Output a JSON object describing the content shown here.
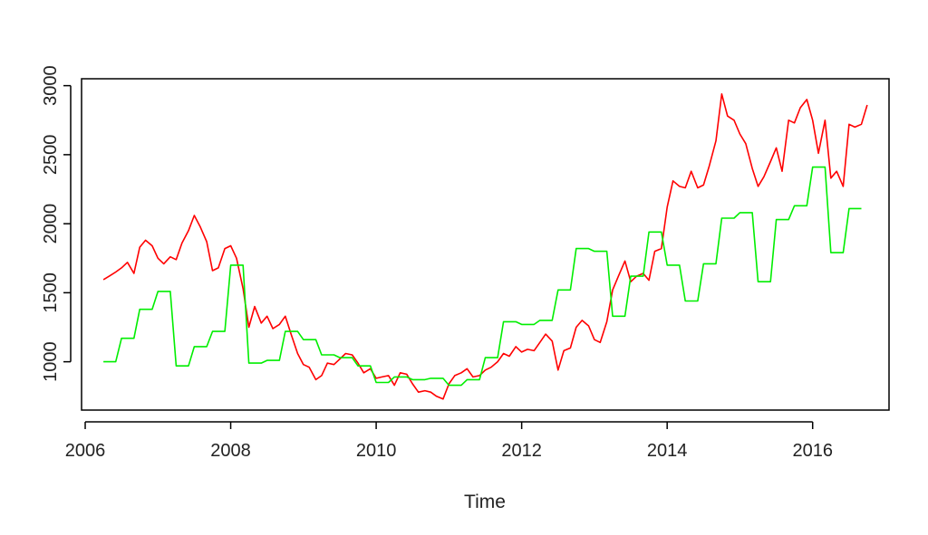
{
  "chart_data": {
    "type": "line",
    "xlabel": "Time",
    "ylabel": "",
    "xlim": [
      2005.95,
      2017.05
    ],
    "ylim": [
      650,
      3050
    ],
    "x_ticks": [
      2006,
      2008,
      2010,
      2012,
      2014,
      2016
    ],
    "y_ticks": [
      1000,
      1500,
      2000,
      2500,
      3000
    ],
    "grid": false,
    "legend": "none",
    "series": [
      {
        "color": "#ff0000",
        "points": [
          [
            2006.25,
            1595
          ],
          [
            2006.33,
            1620
          ],
          [
            2006.42,
            1650
          ],
          [
            2006.5,
            1680
          ],
          [
            2006.58,
            1720
          ],
          [
            2006.67,
            1640
          ],
          [
            2006.75,
            1830
          ],
          [
            2006.83,
            1880
          ],
          [
            2006.92,
            1840
          ],
          [
            2007.0,
            1750
          ],
          [
            2007.08,
            1710
          ],
          [
            2007.17,
            1760
          ],
          [
            2007.25,
            1740
          ],
          [
            2007.33,
            1860
          ],
          [
            2007.42,
            1950
          ],
          [
            2007.5,
            2060
          ],
          [
            2007.58,
            1980
          ],
          [
            2007.67,
            1870
          ],
          [
            2007.75,
            1660
          ],
          [
            2007.83,
            1680
          ],
          [
            2007.92,
            1820
          ],
          [
            2008.0,
            1840
          ],
          [
            2008.08,
            1750
          ],
          [
            2008.17,
            1530
          ],
          [
            2008.25,
            1250
          ],
          [
            2008.33,
            1400
          ],
          [
            2008.42,
            1280
          ],
          [
            2008.5,
            1330
          ],
          [
            2008.58,
            1240
          ],
          [
            2008.67,
            1270
          ],
          [
            2008.75,
            1330
          ],
          [
            2008.83,
            1200
          ],
          [
            2008.92,
            1060
          ],
          [
            2009.0,
            980
          ],
          [
            2009.08,
            960
          ],
          [
            2009.17,
            870
          ],
          [
            2009.25,
            900
          ],
          [
            2009.33,
            990
          ],
          [
            2009.42,
            980
          ],
          [
            2009.5,
            1020
          ],
          [
            2009.58,
            1060
          ],
          [
            2009.67,
            1050
          ],
          [
            2009.75,
            990
          ],
          [
            2009.83,
            920
          ],
          [
            2009.92,
            950
          ],
          [
            2010.0,
            880
          ],
          [
            2010.08,
            890
          ],
          [
            2010.17,
            900
          ],
          [
            2010.25,
            830
          ],
          [
            2010.33,
            920
          ],
          [
            2010.42,
            910
          ],
          [
            2010.5,
            840
          ],
          [
            2010.58,
            780
          ],
          [
            2010.67,
            790
          ],
          [
            2010.75,
            780
          ],
          [
            2010.83,
            750
          ],
          [
            2010.92,
            730
          ],
          [
            2011.0,
            840
          ],
          [
            2011.08,
            900
          ],
          [
            2011.17,
            920
          ],
          [
            2011.25,
            950
          ],
          [
            2011.33,
            890
          ],
          [
            2011.42,
            900
          ],
          [
            2011.5,
            940
          ],
          [
            2011.58,
            960
          ],
          [
            2011.67,
            1000
          ],
          [
            2011.75,
            1060
          ],
          [
            2011.83,
            1040
          ],
          [
            2011.92,
            1110
          ],
          [
            2012.0,
            1070
          ],
          [
            2012.08,
            1090
          ],
          [
            2012.17,
            1080
          ],
          [
            2012.25,
            1140
          ],
          [
            2012.33,
            1200
          ],
          [
            2012.42,
            1150
          ],
          [
            2012.5,
            940
          ],
          [
            2012.58,
            1080
          ],
          [
            2012.67,
            1100
          ],
          [
            2012.75,
            1250
          ],
          [
            2012.83,
            1300
          ],
          [
            2012.92,
            1260
          ],
          [
            2013.0,
            1160
          ],
          [
            2013.08,
            1140
          ],
          [
            2013.17,
            1290
          ],
          [
            2013.25,
            1520
          ],
          [
            2013.33,
            1620
          ],
          [
            2013.42,
            1730
          ],
          [
            2013.5,
            1580
          ],
          [
            2013.58,
            1620
          ],
          [
            2013.67,
            1640
          ],
          [
            2013.75,
            1590
          ],
          [
            2013.83,
            1800
          ],
          [
            2013.92,
            1820
          ],
          [
            2014.0,
            2120
          ],
          [
            2014.08,
            2310
          ],
          [
            2014.17,
            2270
          ],
          [
            2014.25,
            2260
          ],
          [
            2014.33,
            2380
          ],
          [
            2014.42,
            2260
          ],
          [
            2014.5,
            2280
          ],
          [
            2014.58,
            2420
          ],
          [
            2014.67,
            2600
          ],
          [
            2014.75,
            2940
          ],
          [
            2014.83,
            2780
          ],
          [
            2014.92,
            2750
          ],
          [
            2015.0,
            2650
          ],
          [
            2015.08,
            2580
          ],
          [
            2015.17,
            2400
          ],
          [
            2015.25,
            2270
          ],
          [
            2015.33,
            2340
          ],
          [
            2015.42,
            2450
          ],
          [
            2015.5,
            2550
          ],
          [
            2015.58,
            2380
          ],
          [
            2015.67,
            2750
          ],
          [
            2015.75,
            2730
          ],
          [
            2015.83,
            2840
          ],
          [
            2015.92,
            2900
          ],
          [
            2016.0,
            2750
          ],
          [
            2016.08,
            2510
          ],
          [
            2016.17,
            2750
          ],
          [
            2016.25,
            2330
          ],
          [
            2016.33,
            2380
          ],
          [
            2016.42,
            2270
          ],
          [
            2016.5,
            2720
          ],
          [
            2016.58,
            2700
          ],
          [
            2016.67,
            2720
          ],
          [
            2016.75,
            2860
          ]
        ]
      },
      {
        "color": "#00ee00",
        "points": [
          [
            2006.25,
            1000
          ],
          [
            2006.42,
            1000
          ],
          [
            2006.5,
            1170
          ],
          [
            2006.67,
            1170
          ],
          [
            2006.75,
            1380
          ],
          [
            2006.92,
            1380
          ],
          [
            2007.0,
            1510
          ],
          [
            2007.17,
            1510
          ],
          [
            2007.25,
            970
          ],
          [
            2007.42,
            970
          ],
          [
            2007.5,
            1110
          ],
          [
            2007.67,
            1110
          ],
          [
            2007.75,
            1220
          ],
          [
            2007.92,
            1220
          ],
          [
            2008.0,
            1700
          ],
          [
            2008.17,
            1700
          ],
          [
            2008.25,
            990
          ],
          [
            2008.42,
            990
          ],
          [
            2008.5,
            1010
          ],
          [
            2008.67,
            1010
          ],
          [
            2008.75,
            1220
          ],
          [
            2008.92,
            1220
          ],
          [
            2009.0,
            1160
          ],
          [
            2009.17,
            1160
          ],
          [
            2009.25,
            1050
          ],
          [
            2009.42,
            1050
          ],
          [
            2009.5,
            1030
          ],
          [
            2009.67,
            1030
          ],
          [
            2009.75,
            970
          ],
          [
            2009.92,
            970
          ],
          [
            2010.0,
            850
          ],
          [
            2010.17,
            850
          ],
          [
            2010.25,
            890
          ],
          [
            2010.42,
            890
          ],
          [
            2010.5,
            870
          ],
          [
            2010.67,
            870
          ],
          [
            2010.75,
            880
          ],
          [
            2010.92,
            880
          ],
          [
            2011.0,
            830
          ],
          [
            2011.17,
            830
          ],
          [
            2011.25,
            870
          ],
          [
            2011.42,
            870
          ],
          [
            2011.5,
            1030
          ],
          [
            2011.67,
            1030
          ],
          [
            2011.75,
            1290
          ],
          [
            2011.92,
            1290
          ],
          [
            2012.0,
            1270
          ],
          [
            2012.17,
            1270
          ],
          [
            2012.25,
            1300
          ],
          [
            2012.42,
            1300
          ],
          [
            2012.5,
            1520
          ],
          [
            2012.67,
            1520
          ],
          [
            2012.75,
            1820
          ],
          [
            2012.92,
            1820
          ],
          [
            2013.0,
            1800
          ],
          [
            2013.17,
            1800
          ],
          [
            2013.25,
            1330
          ],
          [
            2013.42,
            1330
          ],
          [
            2013.5,
            1620
          ],
          [
            2013.67,
            1620
          ],
          [
            2013.75,
            1940
          ],
          [
            2013.92,
            1940
          ],
          [
            2014.0,
            1700
          ],
          [
            2014.17,
            1700
          ],
          [
            2014.25,
            1440
          ],
          [
            2014.42,
            1440
          ],
          [
            2014.5,
            1710
          ],
          [
            2014.67,
            1710
          ],
          [
            2014.75,
            2040
          ],
          [
            2014.92,
            2040
          ],
          [
            2015.0,
            2080
          ],
          [
            2015.17,
            2080
          ],
          [
            2015.25,
            1580
          ],
          [
            2015.42,
            1580
          ],
          [
            2015.5,
            2030
          ],
          [
            2015.67,
            2030
          ],
          [
            2015.75,
            2130
          ],
          [
            2015.92,
            2130
          ],
          [
            2016.0,
            2410
          ],
          [
            2016.17,
            2410
          ],
          [
            2016.25,
            1790
          ],
          [
            2016.42,
            1790
          ],
          [
            2016.5,
            2110
          ],
          [
            2016.67,
            2110
          ]
        ]
      }
    ]
  }
}
